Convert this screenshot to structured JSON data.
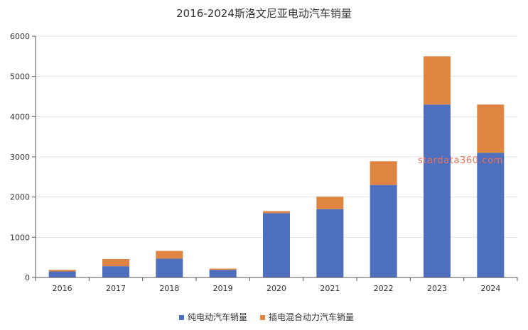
{
  "chart_data": {
    "type": "bar",
    "stacked": true,
    "title": "2016-2024斯洛文尼亚电动汽车销量",
    "categories": [
      "2016",
      "2017",
      "2018",
      "2019",
      "2020",
      "2021",
      "2022",
      "2023",
      "2024"
    ],
    "series": [
      {
        "name": "纯电动汽车销量",
        "color": "#4e6fbe",
        "values": [
          150,
          280,
          470,
          190,
          1600,
          1700,
          2300,
          4300,
          3100
        ]
      },
      {
        "name": "插电混合动力汽车销量",
        "color": "#e08442",
        "values": [
          40,
          180,
          190,
          30,
          50,
          310,
          590,
          1200,
          1200
        ]
      }
    ],
    "ylim": [
      0,
      6000
    ],
    "yticks": [
      0,
      1000,
      2000,
      3000,
      4000,
      5000,
      6000
    ],
    "grid": true,
    "legend_position": "bottom-center"
  },
  "watermark": "stardata360.com"
}
